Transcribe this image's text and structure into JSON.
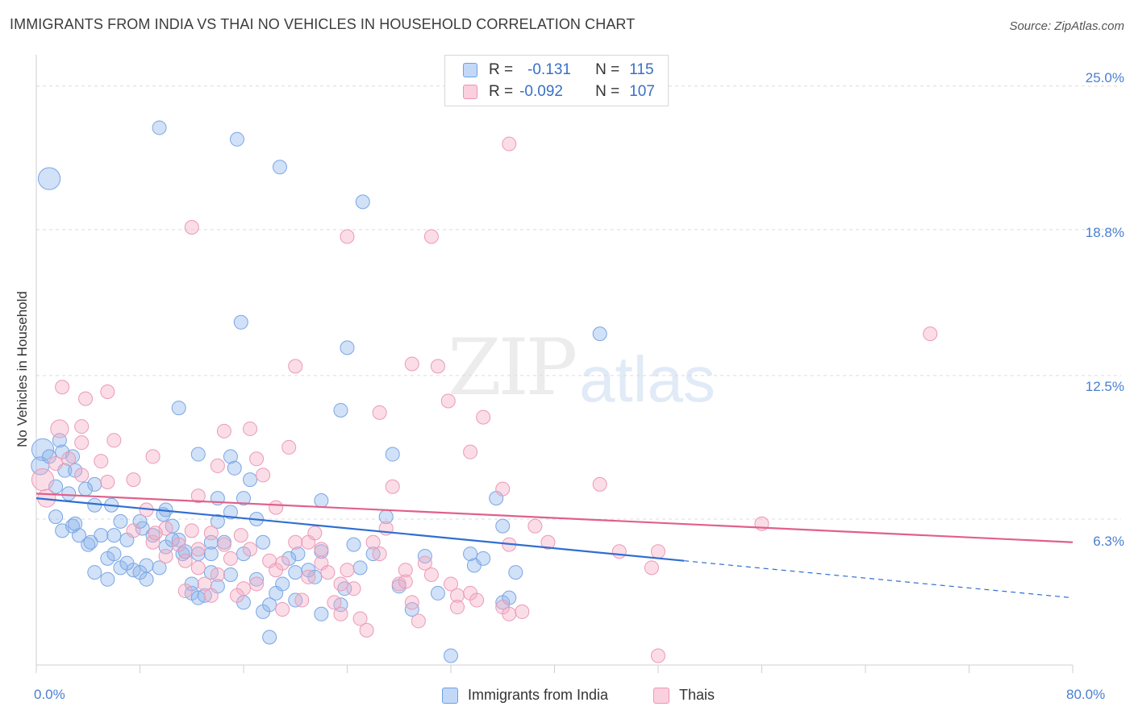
{
  "title": "IMMIGRANTS FROM INDIA VS THAI NO VEHICLES IN HOUSEHOLD CORRELATION CHART",
  "source": "Source: ZipAtlas.com",
  "watermark": {
    "a": "ZIP",
    "b": "atlas"
  },
  "colors": {
    "india": "#6c9fe6",
    "india_line": "#2f6fd0",
    "thai": "#ef93b2",
    "thai_line": "#e0608c",
    "tick": "#4a7fd0"
  },
  "legend_top": {
    "india": {
      "r_label": "R =",
      "r_value": "-0.131",
      "n_label": "N =",
      "n_value": "115"
    },
    "thai": {
      "r_label": "R =",
      "r_value": "-0.092",
      "n_label": "N =",
      "n_value": "107"
    }
  },
  "chart_data": {
    "type": "scatter",
    "title": "IMMIGRANTS FROM INDIA VS THAI NO VEHICLES IN HOUSEHOLD CORRELATION CHART",
    "xlabel": "",
    "ylabel": "No Vehicles in Household",
    "xlim": [
      0,
      80
    ],
    "ylim": [
      0,
      26
    ],
    "x_tick_labels": [
      "0.0%",
      "80.0%"
    ],
    "y_ticks": [
      6.3,
      12.5,
      18.8,
      25.0
    ],
    "y_tick_labels": [
      "6.3%",
      "12.5%",
      "18.8%",
      "25.0%"
    ],
    "grid": "horizontal dashed",
    "legend_position": "bottom-center",
    "series": [
      {
        "name": "Immigrants from India",
        "trend": {
          "x0": 0,
          "y0": 7.2,
          "x1": 50,
          "y1": 4.5,
          "dashed_to_x": 80,
          "dashed_to_y": 2.9
        },
        "points": [
          [
            1.0,
            21.0,
            1.6
          ],
          [
            9.5,
            23.2,
            1
          ],
          [
            15.5,
            22.7,
            1
          ],
          [
            18.8,
            21.5,
            1
          ],
          [
            25.2,
            20.0,
            1
          ],
          [
            15.8,
            14.8,
            1
          ],
          [
            24.0,
            13.7,
            1
          ],
          [
            43.5,
            14.3,
            1
          ],
          [
            11.0,
            11.1,
            1
          ],
          [
            23.5,
            11.0,
            1
          ],
          [
            0.5,
            9.3,
            1.6
          ],
          [
            0.3,
            8.6,
            1.3
          ],
          [
            1.0,
            9.0,
            1
          ],
          [
            1.8,
            9.7,
            1
          ],
          [
            2.8,
            9.0,
            1
          ],
          [
            1.5,
            7.7,
            1
          ],
          [
            2.2,
            8.4,
            1
          ],
          [
            3.0,
            8.4,
            1
          ],
          [
            4.5,
            7.8,
            1
          ],
          [
            2.5,
            7.4,
            1
          ],
          [
            3.8,
            7.6,
            1
          ],
          [
            12.5,
            9.1,
            1
          ],
          [
            15.0,
            9.0,
            1
          ],
          [
            27.5,
            9.1,
            1
          ],
          [
            15.3,
            8.5,
            1
          ],
          [
            16.5,
            8.0,
            1
          ],
          [
            4.5,
            6.9,
            1
          ],
          [
            5.8,
            6.9,
            1
          ],
          [
            10.0,
            6.7,
            1
          ],
          [
            14.0,
            7.2,
            1
          ],
          [
            16.0,
            7.2,
            1
          ],
          [
            22.0,
            7.1,
            1
          ],
          [
            35.5,
            7.2,
            1
          ],
          [
            2.0,
            5.8,
            1
          ],
          [
            3.3,
            5.6,
            1
          ],
          [
            2.8,
            6.0,
            1
          ],
          [
            4.0,
            5.2,
            1
          ],
          [
            5.0,
            5.6,
            1
          ],
          [
            6.0,
            5.6,
            1
          ],
          [
            6.5,
            6.2,
            1
          ],
          [
            7.0,
            5.4,
            1
          ],
          [
            8.2,
            5.9,
            1
          ],
          [
            9.0,
            5.6,
            1
          ],
          [
            11.0,
            5.4,
            1
          ],
          [
            12.5,
            4.8,
            1
          ],
          [
            13.5,
            5.3,
            1
          ],
          [
            15.0,
            6.6,
            1
          ],
          [
            17.0,
            6.3,
            1
          ],
          [
            17.5,
            5.3,
            1
          ],
          [
            10.5,
            6.0,
            1
          ],
          [
            10.0,
            5.1,
            1
          ],
          [
            11.3,
            4.8,
            1
          ],
          [
            4.2,
            5.3,
            1
          ],
          [
            5.5,
            4.6,
            1
          ],
          [
            6.5,
            4.2,
            1
          ],
          [
            7.5,
            4.1,
            1
          ],
          [
            8.5,
            4.3,
            1
          ],
          [
            9.5,
            4.2,
            1
          ],
          [
            4.5,
            4.0,
            1
          ],
          [
            5.5,
            3.7,
            1
          ],
          [
            8.0,
            4.0,
            1
          ],
          [
            8.5,
            3.7,
            1
          ],
          [
            12.0,
            3.1,
            1
          ],
          [
            12.5,
            2.9,
            1
          ],
          [
            13.0,
            3.0,
            1
          ],
          [
            14.0,
            3.4,
            1
          ],
          [
            13.5,
            4.0,
            1
          ],
          [
            15.0,
            3.9,
            1
          ],
          [
            16.0,
            2.7,
            1
          ],
          [
            17.5,
            2.3,
            1
          ],
          [
            18.0,
            2.6,
            1
          ],
          [
            18.5,
            3.1,
            1
          ],
          [
            19.0,
            3.5,
            1
          ],
          [
            20.0,
            4.0,
            1
          ],
          [
            20.2,
            4.8,
            1
          ],
          [
            21.0,
            4.1,
            1
          ],
          [
            22.0,
            4.9,
            1
          ],
          [
            23.5,
            2.6,
            1
          ],
          [
            23.8,
            3.3,
            1
          ],
          [
            22.0,
            2.2,
            1
          ],
          [
            24.5,
            5.2,
            1
          ],
          [
            28.0,
            3.4,
            1
          ],
          [
            29.0,
            2.4,
            1
          ],
          [
            30.0,
            4.7,
            1
          ],
          [
            31.0,
            3.1,
            1
          ],
          [
            33.5,
            4.8,
            1
          ],
          [
            33.8,
            4.3,
            1
          ],
          [
            34.5,
            4.6,
            1
          ],
          [
            36.0,
            2.7,
            1
          ],
          [
            36.5,
            2.9,
            1
          ],
          [
            36.0,
            6.0,
            1
          ],
          [
            37.0,
            4.0,
            1
          ],
          [
            18.0,
            1.2,
            1
          ],
          [
            32.0,
            0.4,
            1
          ],
          [
            27.0,
            6.4,
            1
          ],
          [
            16.0,
            4.8,
            1
          ],
          [
            14.5,
            5.3,
            1
          ],
          [
            10.5,
            5.4,
            1
          ],
          [
            13.5,
            4.8,
            1
          ],
          [
            6.0,
            4.8,
            1
          ],
          [
            3.0,
            6.1,
            1
          ],
          [
            9.8,
            6.5,
            1
          ],
          [
            7.0,
            4.4,
            1
          ],
          [
            11.5,
            4.9,
            1
          ],
          [
            19.5,
            4.6,
            1
          ],
          [
            21.5,
            3.8,
            1
          ],
          [
            26.0,
            4.8,
            1
          ],
          [
            1.5,
            6.4,
            1
          ],
          [
            2.0,
            9.2,
            1
          ],
          [
            8.0,
            6.2,
            1
          ],
          [
            14.0,
            6.2,
            1
          ],
          [
            20.0,
            2.8,
            1
          ],
          [
            12.0,
            3.5,
            1
          ],
          [
            17.0,
            3.7,
            1
          ],
          [
            25.0,
            4.2,
            1
          ]
        ]
      },
      {
        "name": "Thais",
        "trend": {
          "x0": 0,
          "y0": 7.4,
          "x1": 80,
          "y1": 5.3
        },
        "points": [
          [
            0.5,
            8.0,
            1.6
          ],
          [
            0.8,
            7.2,
            1.3
          ],
          [
            1.5,
            8.7,
            1
          ],
          [
            2.5,
            8.9,
            1
          ],
          [
            3.5,
            8.2,
            1
          ],
          [
            1.8,
            10.2,
            1.3
          ],
          [
            2.0,
            12.0,
            1
          ],
          [
            3.5,
            10.3,
            1
          ],
          [
            3.8,
            11.5,
            1
          ],
          [
            5.5,
            11.8,
            1
          ],
          [
            3.5,
            9.6,
            1
          ],
          [
            5.0,
            8.8,
            1
          ],
          [
            6.0,
            9.7,
            1
          ],
          [
            7.5,
            8.0,
            1
          ],
          [
            5.5,
            7.9,
            1
          ],
          [
            9.0,
            9.0,
            1
          ],
          [
            12.0,
            18.9,
            1
          ],
          [
            24.0,
            18.5,
            1
          ],
          [
            30.5,
            18.5,
            1
          ],
          [
            36.5,
            22.5,
            1
          ],
          [
            69.0,
            14.3,
            1
          ],
          [
            20.0,
            12.9,
            1
          ],
          [
            29.0,
            13.0,
            1
          ],
          [
            31.0,
            12.9,
            1
          ],
          [
            14.5,
            10.1,
            1
          ],
          [
            16.5,
            10.2,
            1
          ],
          [
            26.5,
            10.9,
            1
          ],
          [
            31.8,
            11.4,
            1
          ],
          [
            34.5,
            10.7,
            1
          ],
          [
            19.5,
            9.4,
            1
          ],
          [
            17.0,
            8.9,
            1
          ],
          [
            14.0,
            8.6,
            1
          ],
          [
            33.5,
            9.2,
            1
          ],
          [
            17.5,
            8.2,
            1
          ],
          [
            27.5,
            7.7,
            1
          ],
          [
            36.0,
            7.6,
            1
          ],
          [
            43.5,
            7.8,
            1
          ],
          [
            12.5,
            7.3,
            1
          ],
          [
            18.5,
            6.8,
            1
          ],
          [
            8.5,
            6.7,
            1
          ],
          [
            7.5,
            5.8,
            1
          ],
          [
            10.0,
            5.9,
            1
          ],
          [
            12.0,
            5.8,
            1
          ],
          [
            13.5,
            5.7,
            1
          ],
          [
            9.0,
            5.3,
            1
          ],
          [
            11.0,
            5.2,
            1
          ],
          [
            12.5,
            5.0,
            1
          ],
          [
            10.0,
            4.7,
            1
          ],
          [
            11.5,
            4.5,
            1
          ],
          [
            12.5,
            4.2,
            1
          ],
          [
            14.5,
            5.2,
            1
          ],
          [
            15.0,
            4.6,
            1
          ],
          [
            16.5,
            5.0,
            1
          ],
          [
            18.0,
            4.5,
            1
          ],
          [
            18.5,
            4.1,
            1
          ],
          [
            19.0,
            4.4,
            1
          ],
          [
            20.0,
            5.3,
            1
          ],
          [
            21.0,
            5.3,
            1
          ],
          [
            21.5,
            5.7,
            1
          ],
          [
            22.0,
            5.0,
            1
          ],
          [
            22.0,
            4.4,
            1
          ],
          [
            22.5,
            4.0,
            1
          ],
          [
            24.0,
            4.1,
            1
          ],
          [
            27.0,
            5.9,
            1
          ],
          [
            26.5,
            4.8,
            1
          ],
          [
            28.5,
            4.1,
            1
          ],
          [
            30.0,
            4.4,
            1
          ],
          [
            30.5,
            3.9,
            1
          ],
          [
            28.0,
            3.5,
            1
          ],
          [
            32.0,
            3.5,
            1
          ],
          [
            32.5,
            3.0,
            1
          ],
          [
            33.5,
            3.1,
            1
          ],
          [
            32.5,
            2.5,
            1
          ],
          [
            29.0,
            2.7,
            1
          ],
          [
            24.5,
            3.3,
            1
          ],
          [
            23.0,
            2.7,
            1
          ],
          [
            23.5,
            2.2,
            1
          ],
          [
            25.0,
            2.0,
            1
          ],
          [
            25.5,
            1.5,
            1
          ],
          [
            29.5,
            1.9,
            1
          ],
          [
            36.0,
            2.5,
            1
          ],
          [
            36.5,
            2.2,
            1
          ],
          [
            37.5,
            2.3,
            1
          ],
          [
            36.5,
            5.2,
            1
          ],
          [
            38.5,
            6.0,
            1
          ],
          [
            39.5,
            5.3,
            1
          ],
          [
            45.0,
            4.9,
            1
          ],
          [
            47.5,
            4.2,
            1
          ],
          [
            48.0,
            4.9,
            1
          ],
          [
            56.0,
            6.1,
            1
          ],
          [
            48.0,
            0.4,
            1
          ],
          [
            14.0,
            3.9,
            1
          ],
          [
            13.0,
            3.5,
            1
          ],
          [
            16.0,
            3.3,
            1
          ],
          [
            17.0,
            3.5,
            1
          ],
          [
            19.0,
            2.4,
            1
          ],
          [
            20.5,
            2.8,
            1
          ],
          [
            13.5,
            3.0,
            1
          ],
          [
            15.5,
            3.0,
            1
          ],
          [
            11.5,
            3.2,
            1
          ],
          [
            21.0,
            3.8,
            1
          ],
          [
            34.0,
            2.8,
            1
          ],
          [
            28.5,
            3.6,
            1
          ],
          [
            23.5,
            3.5,
            1
          ],
          [
            26.0,
            5.3,
            1
          ],
          [
            15.8,
            5.6,
            1
          ],
          [
            9.2,
            5.7,
            1
          ]
        ]
      }
    ]
  },
  "legend_bottom": {
    "india": "Immigrants from India",
    "thai": "Thais"
  }
}
